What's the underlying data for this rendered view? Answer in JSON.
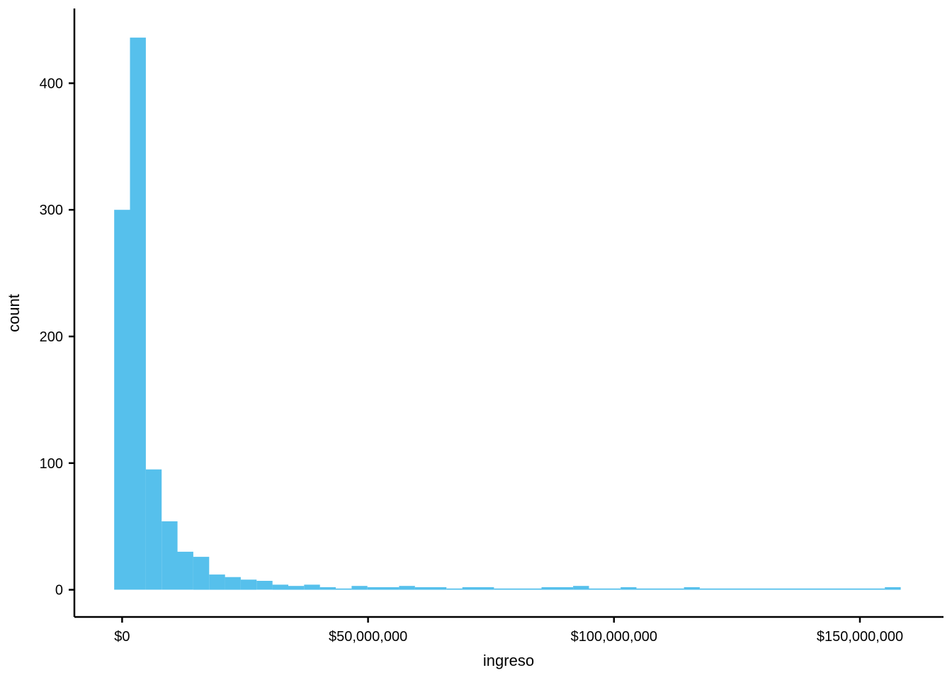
{
  "chart_data": {
    "type": "bar",
    "subtype": "histogram",
    "title": "",
    "xlabel": "ingreso",
    "ylabel": "count",
    "legend": null,
    "grid": false,
    "background_color": "#ffffff",
    "bar_color": "#56C0EC",
    "axis_color": "#000000",
    "text_color": "#000000",
    "x_unit": "USD",
    "binwidth": 3220000,
    "xlim": [
      -9700000,
      167000000
    ],
    "ylim": [
      -21.5,
      459
    ],
    "x_ticks": [
      {
        "value": 0,
        "label": "$0"
      },
      {
        "value": 50000000,
        "label": "$50,000,000"
      },
      {
        "value": 100000000,
        "label": "$100,000,000"
      },
      {
        "value": 150000000,
        "label": "$150,000,000"
      }
    ],
    "y_ticks": [
      {
        "value": 0,
        "label": "0"
      },
      {
        "value": 100,
        "label": "100"
      },
      {
        "value": 200,
        "label": "200"
      },
      {
        "value": 300,
        "label": "300"
      },
      {
        "value": 400,
        "label": "400"
      }
    ],
    "bars": [
      {
        "x0": -1610000,
        "x1": 1610000,
        "count": 300
      },
      {
        "x0": 1610000,
        "x1": 4830000,
        "count": 436
      },
      {
        "x0": 4830000,
        "x1": 8040000,
        "count": 95
      },
      {
        "x0": 8040000,
        "x1": 11260000,
        "count": 54
      },
      {
        "x0": 11260000,
        "x1": 14480000,
        "count": 30
      },
      {
        "x0": 14480000,
        "x1": 17700000,
        "count": 26
      },
      {
        "x0": 17700000,
        "x1": 20920000,
        "count": 12
      },
      {
        "x0": 20920000,
        "x1": 24130000,
        "count": 10
      },
      {
        "x0": 24130000,
        "x1": 27350000,
        "count": 8
      },
      {
        "x0": 27350000,
        "x1": 30570000,
        "count": 7
      },
      {
        "x0": 30570000,
        "x1": 33790000,
        "count": 4
      },
      {
        "x0": 33790000,
        "x1": 37000000,
        "count": 3
      },
      {
        "x0": 37000000,
        "x1": 40220000,
        "count": 4
      },
      {
        "x0": 40220000,
        "x1": 43440000,
        "count": 2
      },
      {
        "x0": 43440000,
        "x1": 46660000,
        "count": 1
      },
      {
        "x0": 46660000,
        "x1": 49870000,
        "count": 3
      },
      {
        "x0": 49870000,
        "x1": 56310000,
        "count": 2
      },
      {
        "x0": 56310000,
        "x1": 59530000,
        "count": 3
      },
      {
        "x0": 59530000,
        "x1": 65960000,
        "count": 2
      },
      {
        "x0": 65960000,
        "x1": 69180000,
        "count": 1
      },
      {
        "x0": 69180000,
        "x1": 75620000,
        "count": 2
      },
      {
        "x0": 75620000,
        "x1": 85270000,
        "count": 1
      },
      {
        "x0": 85270000,
        "x1": 91700000,
        "count": 2
      },
      {
        "x0": 91700000,
        "x1": 94920000,
        "count": 3
      },
      {
        "x0": 94920000,
        "x1": 101360000,
        "count": 1
      },
      {
        "x0": 101360000,
        "x1": 104570000,
        "count": 2
      },
      {
        "x0": 104570000,
        "x1": 114230000,
        "count": 1
      },
      {
        "x0": 114230000,
        "x1": 117440000,
        "count": 2
      },
      {
        "x0": 117440000,
        "x1": 155080000,
        "count": 1
      },
      {
        "x0": 155080000,
        "x1": 158300000,
        "count": 2
      }
    ]
  }
}
